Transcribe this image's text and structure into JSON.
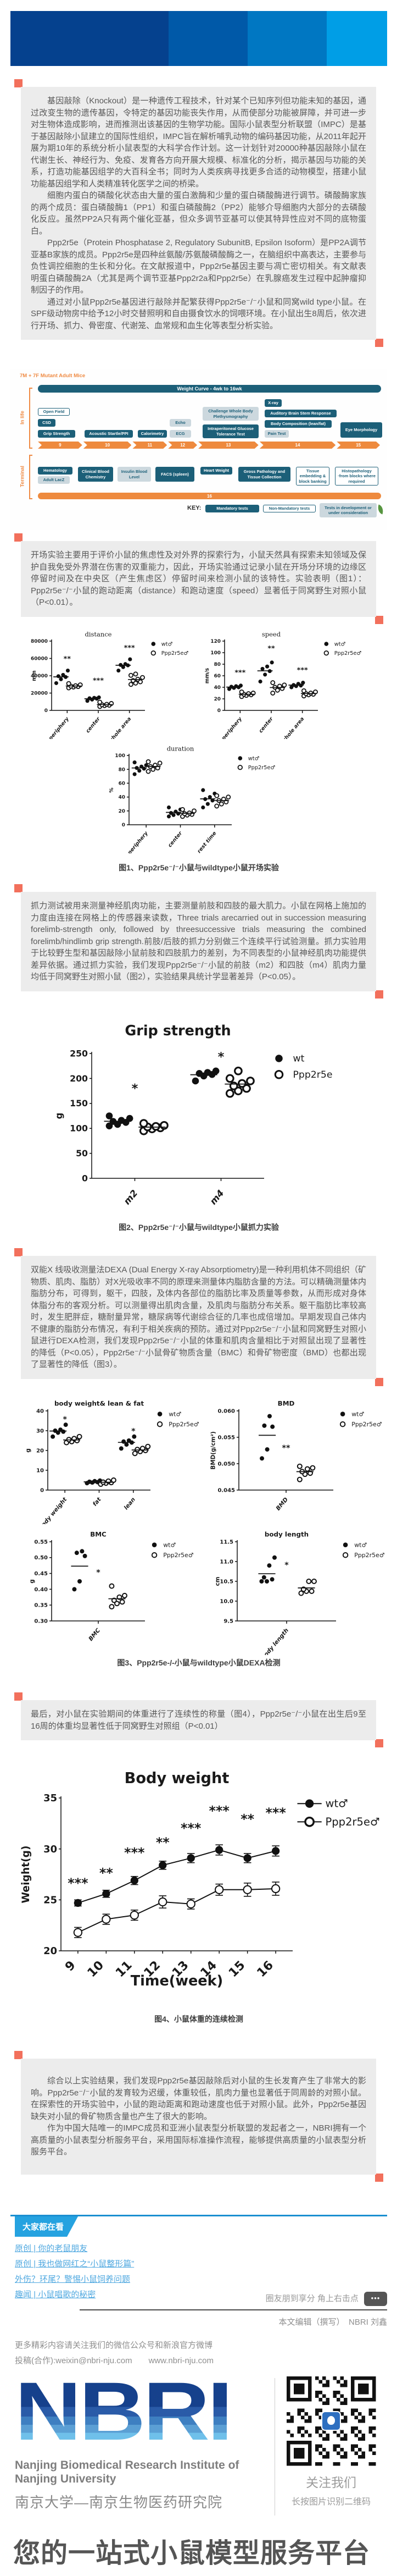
{
  "banner": {
    "colors": [
      "#05418e",
      "#0059a8",
      "#0077c2",
      "#009ee6"
    ],
    "widths": [
      42,
      21,
      21,
      16
    ]
  },
  "article": {
    "box1": {
      "paras": [
        "基因敲除（Knockout）是一种遗传工程技术，针对某个已知序列但功能未知的基因，通过改变生物的遗传基因，令特定的基因功能丧失作用，从而使部分功能被屏障，并可进一步对生物体造成影响，进而推测出该基因的生物学功能。国际小鼠表型分析联盟（IMPC）是基于基因敲除小鼠建立的国际性组织，IMPC旨在解析哺乳动物的编码基因功能，从2011年起开展为期10年的系统分析小鼠表型的大科学合作计划。这一计划针对20000种基因敲除小鼠在代谢生长、神经行为、免疫、发育各方向开展大规模、标准化的分析，揭示基因与功能的关系，打造功能基因组学的大百科全书；同时为人类疾病寻找更多合适的动物模型，搭建小鼠功能基因组学和人类精准转化医学之间的桥梁。",
        "细胞内蛋白的磷酸化状态由大量的蛋白激酶和少量的蛋白磷酸酶进行调节。磷酸酶家族的两个成员：蛋白磷酸酶1（PP1）和蛋白磷酸酶2（PP2）能够介导细胞内大部分的去磷酸化反应。虽然PP2A只有两个催化亚基，但众多调节亚基可以使其特异性应对不同的底物蛋白。",
        "Ppp2r5e（Protein Phosphatase 2, Regulatory SubunitB, Epsilon Isoform）是PP2A调节亚基B家族的成员。Ppp2r5e是四种丝氨酸/苏氨酸磷酸酶之一，在脑组织中高表达，主要参与负性调控细胞的生长和分化。在文献报道中，Ppp2r5e基因主要与凋亡密切相关。有文献表明蛋白磷酸酶2A（尤其是两个调节亚基Ppp2r2a和Ppp2r5e）在乳腺癌发生过程中起肿瘤抑制因子的作用。",
        "通过对小鼠Ppp2r5e基因进行敲除并配繁获得Ppp2r5e⁻/⁻小鼠和同窝wild type小鼠。在SPF级动物房中给予12小时交替照明和自由摄食饮水的饲喂环境。在小鼠出生8周后，依次进行开场、抓力、骨密度、代谢笼、血常规和血生化等表型分析实验。"
      ]
    },
    "box2": {
      "paras": [
        "开场实验主要用于评价小鼠的焦虑性及对外界的探索行为，小鼠天然具有探索未知领域及保护自我免受外界潜在伤害的双重能力，因此，开场实验通过记录小鼠在开场分环境的边缘区停留时间及在中央区（产生焦虑区）停留时间来检测小鼠的该特性。实验表明（图1）：Ppp2r5e⁻/⁻小鼠的跑动距离（distance）和跑动速度（speed）显著低于同窝野生对照小鼠（P<0.01）。"
      ]
    },
    "box3": {
      "paras": [
        "抓力测试被用来测量神经肌肉功能，主要测量前肢和四肢的最大肌力。小鼠在网格上施加的力度由连接在网格上的传感器来读数，Three trials arecarried out in succession measuring forelimb-strength only, followed by threesuccessive trials measuring the combined forelimb/hindlimb grip strength.前肢/后肢的抓力分别做三个连续平行试验测量。抓力实验用于比较野生型和基因敲除小鼠前肢和四肢肌力的差别，为不同表型的小鼠神经肌肉功能提供差异依据。通过抓力实验，我们发现Ppp2r5e⁻/⁻小鼠的前肢（m2）和四肢（m4）肌肉力量均低于同窝野生对照小鼠（图2），实验结果具统计学显著差异（P<0.05）。"
      ]
    },
    "box4": {
      "paras": [
        "双能X 线吸收测量法DEXA (Dual Energy X-ray Absorptiometry)是一种利用机体不同组织（矿物质、肌肉、脂肪）对X光吸收率不同的原理来测量体内脂肪含量的方法。可以精确测量体内脂肪分布，可得到，躯干，四肢，及体内各部位的脂肪比率及质量等参数，从而形成对身体体脂分布的客观分析。可以测量得出肌肉含量，及肌肉与脂肪分布关系。躯干脂肪比率较高时，发生肥胖症，糖耐量异常，糖尿病等代谢综合征的几率也成倍增加。早期发现自己体内不健康的脂肪分布情况，有利于相关疾病的预防。通过对Ppp2r5e⁻/⁻小鼠和同窝野生对照小鼠进行DEXA检测，我们发现Ppp2r5e⁻/⁻小鼠的体重和肌肉含量相比于对照鼠出现了显著性的降低（P<0.05），Ppp2r5e⁻/⁻小鼠骨矿物质含量（BMC）和骨矿物密度（BMD）也都出现了显著性的降低（图3）。"
      ]
    },
    "box5": {
      "paras": [
        "最后，对小鼠在实验期间的体重进行了连续性的称量（图4），Ppp2r5e⁻/⁻小鼠在出生后9至16周的体重均显著性低于同窝野生对照组（P<0.01）"
      ]
    },
    "box6": {
      "paras": [
        "综合以上实验结果，我们发现Ppp2r5e基因敲除后对小鼠的生长发育产生了非常大的影响。Ppp2r5e⁻/⁻小鼠的发育较为迟缓，体重较低，肌肉力量也显著低于同周龄的对照小鼠。在探索性的开场实验中，小鼠的跑动距离和跑动速度也低于对照小鼠。此外，Ppp2r5e基因缺失对小鼠的骨矿物质含量也产生了很大的影响。",
        "作为中国大陆唯一的IMPC成员和亚洲小鼠表型分析联盟的发起者之一，NBRI拥有一个高质量的小鼠表型分析服务平台，采用国际标准操作流程，能够提供高质量的小鼠表型分析服务平台。"
      ]
    }
  },
  "pipeline": {
    "subject": "7M + 7F Mutant Adult Mice",
    "weight_bar": "Weight Curve - 4wk to 16wk",
    "in_life_label": "In life",
    "terminal_label": "Terminal",
    "weeks": [
      "9",
      "10",
      "11",
      "12",
      "13",
      "14",
      "15"
    ],
    "week16": "16",
    "key_label": "KEY:",
    "key_items": [
      "Mandatory tests",
      "Non-Mandatory tests",
      "Tests in development or under consideration"
    ],
    "in_life_tests": {
      "open_field": "Open Field",
      "csd": "CSD",
      "grip": "Grip Strength",
      "acoustic": "Acoustic Startle/PPI",
      "calorimetry": "Calorimetry",
      "echo": "Echo",
      "ecg": "ECG",
      "challenge": "Challenge Whole Body Plethysmography",
      "ipgtt": "Intraperitoneal Glucose Tolerance Test",
      "xray": "X-ray",
      "abr": "Auditory Brain Stem Response",
      "body_comp": "Body Composition (lean/fat)",
      "pain": "Pain Test",
      "eye": "Eye Morphology"
    },
    "terminal_tests": {
      "hematology": "Hematology",
      "lacz": "Adult LacZ",
      "clin_chem": "Clinical Blood Chemistry",
      "insulin": "Insulin Blood Level",
      "facs": "FACS (spleen)",
      "heart": "Heart Weight",
      "gross": "Gross Pathology and Tissue Collection",
      "tissue": "Tissue embedding & block banking",
      "histo": "Histopathology ·from blocks where required"
    }
  },
  "figures": {
    "fig1": {
      "caption": "图1、Ppp2r5e⁻/⁻小鼠与wildtype小鼠开场实验"
    },
    "fig2": {
      "caption": "图2、Ppp2r5e⁻/⁻小鼠与wildtype小鼠抓力实验"
    },
    "fig3": {
      "caption": "图3、Ppp2r5e-/-小鼠与wildtype小鼠DEXA检测"
    },
    "fig4": {
      "caption": "图4、小鼠体重的连续检测"
    }
  },
  "charts": {
    "distance": {
      "type": "dot",
      "title": "distance",
      "ylabel": "mm",
      "ylim": [
        0,
        80000
      ],
      "yticks": [
        0,
        20000,
        40000,
        60000,
        80000
      ],
      "ydec": 0,
      "categories": [
        "periphery",
        "center",
        "whole area"
      ],
      "legend": [
        "wt♂",
        "Ppp2r5e♂"
      ],
      "sig": [
        {
          "cat": 0,
          "text": "**",
          "y": 57000
        },
        {
          "cat": 1,
          "text": "***",
          "y": 32000
        },
        {
          "cat": 2,
          "text": "***",
          "y": 70000
        }
      ],
      "series": [
        {
          "name": "wt♂",
          "data": [
            [
              31500,
              36000,
              38500,
              39500,
              41000,
              46000
            ],
            [
              11000,
              12500,
              13500,
              14000,
              14500,
              15000
            ],
            [
              46000,
              50000,
              52000,
              52500,
              53500,
              59000
            ]
          ]
        },
        {
          "name": "Ppp2r5e♂",
          "data": [
            [
              26000,
              27000,
              27500,
              28000,
              28500,
              29500,
              31000
            ],
            [
              4500,
              5500,
              6000,
              6500,
              7000,
              8000,
              9500
            ],
            [
              30000,
              31500,
              33000,
              34500,
              36000,
              38000,
              40500,
              42000
            ]
          ]
        }
      ]
    },
    "speed": {
      "type": "dot",
      "title": "speed",
      "ylabel": "mm/s",
      "ylim": [
        0,
        120
      ],
      "yticks": [
        0,
        20,
        40,
        60,
        80,
        100,
        120
      ],
      "ydec": 0,
      "categories": [
        "periphery",
        "center",
        "whole area"
      ],
      "legend": [
        "wt♂",
        "Ppp2r5e♂"
      ],
      "sig": [
        {
          "cat": 0,
          "text": "***",
          "y": 62
        },
        {
          "cat": 1,
          "text": "**",
          "y": 104
        },
        {
          "cat": 2,
          "text": "***",
          "y": 66
        }
      ],
      "series": [
        {
          "name": "wt♂",
          "data": [
            [
              37,
              39,
              40,
              41,
              42,
              43
            ],
            [
              50,
              62,
              68,
              72,
              76,
              83
            ],
            [
              40,
              42,
              43,
              44,
              46,
              48
            ]
          ]
        },
        {
          "name": "Ppp2r5e♂",
          "data": [
            [
              24,
              26,
              27,
              28,
              29,
              30,
              32
            ],
            [
              30,
              35,
              38,
              40,
              42,
              44,
              48
            ],
            [
              25,
              27,
              28,
              29,
              30,
              32,
              34
            ]
          ]
        }
      ]
    },
    "duration": {
      "type": "dot",
      "title": "duration",
      "ylabel": "%",
      "ylim": [
        0,
        100
      ],
      "yticks": [
        0,
        20,
        40,
        60,
        80,
        100
      ],
      "ydec": 0,
      "categories": [
        "periphery",
        "center",
        "rest time"
      ],
      "legend": [
        "wt♂",
        "Ppp2r5e♂"
      ],
      "sig": [],
      "series": [
        {
          "name": "wt♂",
          "data": [
            [
              73,
              78,
              81,
              82,
              84,
              86,
              90
            ],
            [
              12,
              14,
              16,
              17,
              19,
              22,
              25
            ],
            [
              25,
              30,
              35,
              37,
              40,
              45,
              50
            ]
          ]
        },
        {
          "name": "Ppp2r5e♂",
          "data": [
            [
              77,
              80,
              82,
              84,
              86,
              89,
              91
            ],
            [
              12,
              14,
              15,
              16,
              17,
              20,
              22
            ],
            [
              27,
              30,
              33,
              35,
              37,
              40,
              42
            ]
          ]
        }
      ]
    },
    "grip": {
      "type": "dot",
      "title": "Grip strength",
      "ylabel": "g",
      "ylim": [
        0,
        250
      ],
      "yticks": [
        0,
        50,
        100,
        150,
        200,
        250
      ],
      "ydec": 0,
      "categories": [
        "m2",
        "m4"
      ],
      "legend": [
        "wt",
        "Ppp2r5e"
      ],
      "sig": [
        {
          "cat": 0,
          "text": "*",
          "y": 172
        },
        {
          "cat": 1,
          "text": "*",
          "y": 235
        }
      ],
      "series": [
        {
          "name": "wt",
          "data": [
            [
              105,
              108,
              112,
              114,
              116,
              120,
              125
            ],
            [
              195,
              205,
              208,
              210,
              212,
              215
            ]
          ]
        },
        {
          "name": "Ppp2r5e",
          "data": [
            [
              95,
              99,
              101,
              103,
              104,
              106,
              110
            ],
            [
              170,
              175,
              180,
              185,
              190,
              195,
              200,
              215
            ]
          ]
        }
      ]
    },
    "bwleanfat": {
      "type": "dot",
      "title": "body weight& lean & fat",
      "ylabel": "g",
      "ylim": [
        0,
        40
      ],
      "yticks": [
        0,
        10,
        20,
        30,
        40
      ],
      "ydec": 0,
      "categories": [
        "body weight",
        "fat",
        "lean"
      ],
      "legend": [
        "wt♂",
        "Ppp2r5e♂"
      ],
      "sig": [
        {
          "cat": 0,
          "text": "*",
          "y": 34.5
        },
        {
          "cat": 2,
          "text": "*",
          "y": 28.5
        }
      ],
      "series": [
        {
          "name": "wt♂",
          "data": [
            [
              27,
              29,
              29.5,
              30,
              30.5,
              33
            ],
            [
              3.5,
              3.8,
              4,
              4.2,
              4.5,
              4.8
            ],
            [
              21,
              23,
              24,
              24.5,
              25,
              27
            ]
          ]
        },
        {
          "name": "Ppp2r5e♂",
          "data": [
            [
              24,
              24.5,
              25,
              25.5,
              26,
              27
            ],
            [
              3,
              3.5,
              3.8,
              4,
              4.5,
              5
            ],
            [
              18.5,
              19.5,
              20,
              20.5,
              21,
              22
            ]
          ]
        }
      ]
    },
    "bmd": {
      "type": "dot",
      "title": "BMD",
      "ylabel": "BMD(g/cm²)",
      "ylim": [
        0.045,
        0.06
      ],
      "yticks": [
        0.045,
        0.05,
        0.055,
        0.06
      ],
      "ydec": 3,
      "categories": [
        "BMD"
      ],
      "legend": [
        "wt♂",
        "Ppp2r5e♂"
      ],
      "sig": [
        {
          "cat": 0,
          "text": "**",
          "y": 0.0525
        }
      ],
      "series": [
        {
          "name": "wt♂",
          "data": [
            [
              0.051,
              0.0527,
              0.057,
              0.0572,
              0.059
            ]
          ]
        },
        {
          "name": "Ppp2r5e♂",
          "data": [
            [
              0.047,
              0.048,
              0.0482,
              0.0485,
              0.049,
              0.0492,
              0.0495
            ]
          ]
        }
      ]
    },
    "bmc": {
      "type": "dot",
      "title": "BMC",
      "ylabel": "g",
      "ylim": [
        0.3,
        0.55
      ],
      "yticks": [
        0.3,
        0.35,
        0.4,
        0.45,
        0.5,
        0.55
      ],
      "ydec": 2,
      "categories": [
        "BMC"
      ],
      "legend": [
        "wt♂",
        "Ppp2r5e♂"
      ],
      "sig": [
        {
          "cat": 0,
          "text": "*",
          "y": 0.445
        }
      ],
      "series": [
        {
          "name": "wt♂",
          "data": [
            [
              0.4,
              0.425,
              0.505,
              0.515,
              0.52
            ]
          ]
        },
        {
          "name": "Ppp2r5e♂",
          "data": [
            [
              0.345,
              0.355,
              0.36,
              0.365,
              0.375,
              0.38,
              0.41
            ]
          ]
        }
      ]
    },
    "bodylength": {
      "type": "dot",
      "title": "body length",
      "ylabel": "cm",
      "ylim": [
        9.5,
        11.5
      ],
      "yticks": [
        9.5,
        10,
        10.5,
        11,
        11.5
      ],
      "ydec": 1,
      "categories": [
        "body length"
      ],
      "legend": [
        "wt♂",
        "Ppp2r5e♂"
      ],
      "sig": [
        {
          "cat": 0,
          "text": "*",
          "y": 10.85
        }
      ],
      "series": [
        {
          "name": "wt♂",
          "data": [
            [
              10.5,
              10.5,
              10.55,
              10.6,
              10.9,
              11.1
            ]
          ]
        },
        {
          "name": "Ppp2r5e♂",
          "data": [
            [
              10.2,
              10.25,
              10.25,
              10.3,
              10.5,
              10.5
            ]
          ]
        }
      ]
    },
    "bodyweight": {
      "type": "line",
      "title": "Body weight",
      "ylabel": "Weight(g)",
      "xlabel": "Time(week)",
      "ylim": [
        20,
        35
      ],
      "yticks": [
        20,
        25,
        30,
        35
      ],
      "ydec": 0,
      "x": [
        "9",
        "10",
        "11",
        "12",
        "13",
        "14",
        "15",
        "16"
      ],
      "legend": [
        "wt♂",
        "Ppp2r5e♂"
      ],
      "sig": [
        {
          "i": 0,
          "text": "***",
          "y": 26.2
        },
        {
          "i": 1,
          "text": "**",
          "y": 27.2
        },
        {
          "i": 2,
          "text": "***",
          "y": 29.2
        },
        {
          "i": 3,
          "text": "**",
          "y": 30.2
        },
        {
          "i": 4,
          "text": "***",
          "y": 31.6
        },
        {
          "i": 5,
          "text": "***",
          "y": 33.3
        },
        {
          "i": 6,
          "text": "**",
          "y": 32.5
        },
        {
          "i": 7,
          "text": "***",
          "y": 33.1
        }
      ],
      "series": [
        {
          "name": "wt♂",
          "values": [
            24.7,
            25.6,
            26.9,
            28.4,
            29.1,
            29.9,
            29.1,
            29.8
          ],
          "err": [
            0.3,
            0.35,
            0.4,
            0.4,
            0.45,
            0.5,
            0.45,
            0.5
          ]
        },
        {
          "name": "Ppp2r5e♂",
          "values": [
            21.8,
            23.1,
            23.5,
            24.8,
            24.6,
            26.0,
            26.0,
            26.1
          ],
          "err": [
            0.5,
            0.5,
            0.5,
            0.6,
            0.5,
            0.55,
            0.65,
            0.65
          ]
        }
      ]
    }
  },
  "related": {
    "header": "大家都在看",
    "links": [
      "原创 | 你的老鼠朋友",
      "原创 | 我也做网红之“小鼠整形篇”",
      "外伤？环尾？警惕小鼠饲养问题",
      "趣闻 | 小鼠唱歌的秘密"
    ]
  },
  "share": {
    "text": "圈友朋到享分 角上右击点",
    "dots": "•••"
  },
  "editor": {
    "text": "本文编辑（撰写）　NBRI 刘鑫"
  },
  "contact": {
    "line1": "更多精彩内容请关注我们的微信公众号和新浪官方微博",
    "line2": "投稿(合作):weixin@nbri-nju.com　　www.nbri-nju.com"
  },
  "footer": {
    "logo": "NBRI",
    "en_name": "Nanjing Biomedical Research Institute of Nanjing University",
    "cn_name": "南京大学—南京生物医药研究院",
    "follow": "关注我们",
    "scan": "长按图片识别二维码",
    "slogan": "您的一站式小鼠模型服务平台"
  }
}
